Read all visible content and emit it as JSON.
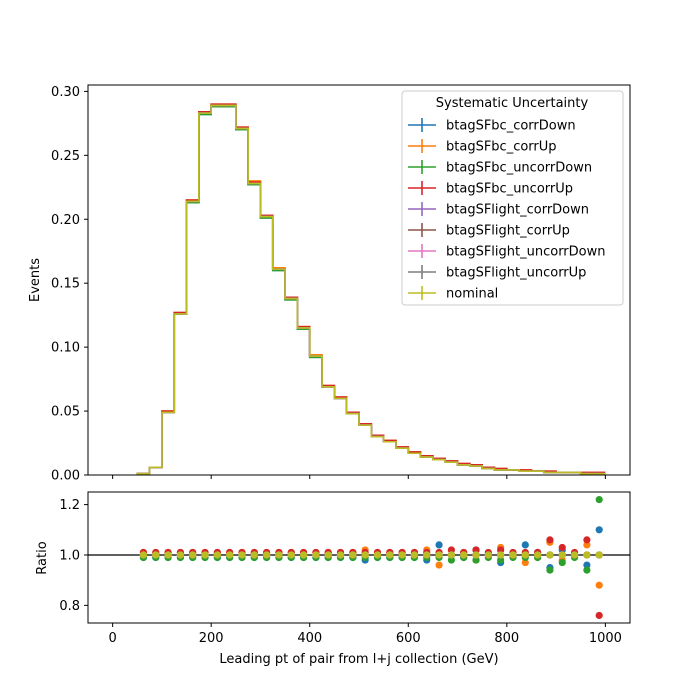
{
  "chart_data": [
    {
      "type": "line",
      "panel": "main",
      "ylabel": "Events",
      "xlim": [
        -50,
        1050
      ],
      "ylim": [
        0,
        0.305
      ],
      "xticks": [
        0,
        200,
        400,
        600,
        800,
        1000
      ],
      "yticks": [
        "0.00",
        "0.05",
        "0.10",
        "0.15",
        "0.20",
        "0.25",
        "0.30"
      ],
      "bin_edges": [
        50,
        75,
        100,
        125,
        150,
        175,
        200,
        225,
        250,
        275,
        300,
        325,
        350,
        375,
        400,
        425,
        450,
        475,
        500,
        525,
        550,
        575,
        600,
        625,
        650,
        675,
        700,
        725,
        750,
        775,
        800,
        825,
        850,
        875,
        900,
        925,
        950,
        975,
        1000
      ],
      "legend_title": "Systematic Uncertainty",
      "legend_position": "top-right",
      "series": [
        {
          "name": "btagSFbc_corrDown",
          "color": "#1f77b4",
          "values": [
            0.001,
            0.006,
            0.049,
            0.126,
            0.213,
            0.282,
            0.288,
            0.288,
            0.27,
            0.227,
            0.201,
            0.16,
            0.137,
            0.114,
            0.092,
            0.069,
            0.06,
            0.048,
            0.039,
            0.03,
            0.026,
            0.021,
            0.017,
            0.014,
            0.012,
            0.01,
            0.008,
            0.007,
            0.005,
            0.004,
            0.004,
            0.003,
            0.003,
            0.002,
            0.002,
            0.002,
            0.001,
            0.001
          ]
        },
        {
          "name": "btagSFbc_corrUp",
          "color": "#ff7f0e",
          "values": [
            0.001,
            0.006,
            0.05,
            0.127,
            0.215,
            0.284,
            0.29,
            0.29,
            0.272,
            0.23,
            0.203,
            0.162,
            0.139,
            0.116,
            0.094,
            0.07,
            0.061,
            0.049,
            0.04,
            0.031,
            0.027,
            0.022,
            0.018,
            0.015,
            0.013,
            0.011,
            0.009,
            0.008,
            0.006,
            0.005,
            0.004,
            0.004,
            0.003,
            0.003,
            0.002,
            0.002,
            0.002,
            0.002
          ]
        },
        {
          "name": "btagSFbc_uncorrDown",
          "color": "#2ca02c",
          "values": [
            0.001,
            0.006,
            0.049,
            0.126,
            0.213,
            0.282,
            0.288,
            0.288,
            0.27,
            0.227,
            0.201,
            0.16,
            0.137,
            0.114,
            0.092,
            0.069,
            0.06,
            0.048,
            0.039,
            0.03,
            0.026,
            0.021,
            0.017,
            0.014,
            0.012,
            0.01,
            0.008,
            0.007,
            0.005,
            0.004,
            0.004,
            0.003,
            0.003,
            0.002,
            0.002,
            0.002,
            0.001,
            0.001
          ]
        },
        {
          "name": "btagSFbc_uncorrUp",
          "color": "#d62728",
          "values": [
            0.001,
            0.006,
            0.05,
            0.127,
            0.215,
            0.284,
            0.29,
            0.29,
            0.272,
            0.229,
            0.203,
            0.161,
            0.139,
            0.116,
            0.093,
            0.07,
            0.061,
            0.049,
            0.04,
            0.031,
            0.027,
            0.022,
            0.018,
            0.015,
            0.013,
            0.011,
            0.009,
            0.008,
            0.006,
            0.005,
            0.004,
            0.004,
            0.003,
            0.003,
            0.002,
            0.002,
            0.002,
            0.002
          ]
        },
        {
          "name": "btagSFlight_corrDown",
          "color": "#9467bd",
          "values": [
            0.001,
            0.006,
            0.049,
            0.126,
            0.214,
            0.283,
            0.289,
            0.289,
            0.271,
            0.228,
            0.202,
            0.161,
            0.138,
            0.115,
            0.093,
            0.069,
            0.06,
            0.048,
            0.039,
            0.03,
            0.026,
            0.021,
            0.017,
            0.014,
            0.012,
            0.01,
            0.008,
            0.007,
            0.005,
            0.004,
            0.004,
            0.003,
            0.003,
            0.002,
            0.002,
            0.002,
            0.001,
            0.001
          ]
        },
        {
          "name": "btagSFlight_corrUp",
          "color": "#8c564b",
          "values": [
            0.001,
            0.006,
            0.049,
            0.126,
            0.214,
            0.283,
            0.289,
            0.289,
            0.271,
            0.228,
            0.202,
            0.161,
            0.138,
            0.115,
            0.093,
            0.069,
            0.06,
            0.048,
            0.039,
            0.03,
            0.026,
            0.021,
            0.017,
            0.014,
            0.012,
            0.01,
            0.008,
            0.007,
            0.005,
            0.004,
            0.004,
            0.003,
            0.003,
            0.002,
            0.002,
            0.002,
            0.001,
            0.001
          ]
        },
        {
          "name": "btagSFlight_uncorrDown",
          "color": "#e377c2",
          "values": [
            0.001,
            0.006,
            0.049,
            0.126,
            0.214,
            0.283,
            0.289,
            0.289,
            0.271,
            0.228,
            0.202,
            0.161,
            0.138,
            0.115,
            0.093,
            0.069,
            0.06,
            0.048,
            0.039,
            0.03,
            0.026,
            0.021,
            0.017,
            0.014,
            0.012,
            0.01,
            0.008,
            0.007,
            0.005,
            0.004,
            0.004,
            0.003,
            0.003,
            0.002,
            0.002,
            0.002,
            0.001,
            0.001
          ]
        },
        {
          "name": "btagSFlight_uncorrUp",
          "color": "#7f7f7f",
          "values": [
            0.001,
            0.006,
            0.049,
            0.126,
            0.214,
            0.283,
            0.289,
            0.289,
            0.271,
            0.228,
            0.202,
            0.161,
            0.138,
            0.115,
            0.093,
            0.069,
            0.06,
            0.048,
            0.039,
            0.03,
            0.026,
            0.021,
            0.017,
            0.014,
            0.012,
            0.01,
            0.008,
            0.007,
            0.005,
            0.004,
            0.004,
            0.003,
            0.003,
            0.002,
            0.002,
            0.002,
            0.001,
            0.001
          ]
        },
        {
          "name": "nominal",
          "color": "#bcbd22",
          "values": [
            0.001,
            0.006,
            0.049,
            0.126,
            0.214,
            0.283,
            0.289,
            0.289,
            0.271,
            0.228,
            0.202,
            0.161,
            0.138,
            0.115,
            0.093,
            0.069,
            0.06,
            0.048,
            0.039,
            0.03,
            0.026,
            0.021,
            0.017,
            0.014,
            0.012,
            0.01,
            0.008,
            0.007,
            0.005,
            0.004,
            0.004,
            0.003,
            0.003,
            0.002,
            0.002,
            0.002,
            0.001,
            0.001
          ]
        }
      ]
    },
    {
      "type": "scatter",
      "panel": "ratio",
      "xlabel": "Leading pt of pair from l+j collection (GeV)",
      "ylabel": "Ratio",
      "xlim": [
        -50,
        1050
      ],
      "ylim": [
        0.73,
        1.25
      ],
      "xticks": [
        "0",
        "200",
        "400",
        "600",
        "800",
        "1000"
      ],
      "yticks": [
        "0.8",
        "1.0",
        "1.2"
      ],
      "reference_line": 1.0,
      "x": [
        62.5,
        87.5,
        112.5,
        137.5,
        162.5,
        187.5,
        212.5,
        237.5,
        262.5,
        287.5,
        312.5,
        337.5,
        362.5,
        387.5,
        412.5,
        437.5,
        462.5,
        487.5,
        512.5,
        537.5,
        562.5,
        587.5,
        612.5,
        637.5,
        662.5,
        687.5,
        712.5,
        737.5,
        762.5,
        787.5,
        812.5,
        837.5,
        862.5,
        887.5,
        912.5,
        937.5,
        962.5,
        987.5
      ],
      "series": [
        {
          "name": "btagSFbc_corrDown",
          "color": "#1f77b4",
          "values": [
            0.99,
            0.99,
            0.99,
            0.99,
            0.99,
            0.99,
            0.99,
            0.99,
            0.99,
            0.99,
            0.99,
            0.99,
            0.99,
            0.99,
            0.99,
            0.99,
            0.99,
            0.99,
            0.98,
            0.99,
            0.99,
            0.99,
            0.99,
            0.98,
            1.04,
            1.0,
            0.99,
            1.02,
            1.0,
            0.97,
            1.0,
            1.04,
            1.01,
            0.95,
            1.02,
            1.0,
            0.96,
            1.1
          ]
        },
        {
          "name": "btagSFbc_corrUp",
          "color": "#ff7f0e",
          "values": [
            1.01,
            1.01,
            1.01,
            1.01,
            1.01,
            1.01,
            1.01,
            1.01,
            1.01,
            1.01,
            1.01,
            1.01,
            1.01,
            1.01,
            1.01,
            1.01,
            1.01,
            1.01,
            1.02,
            1.01,
            1.01,
            1.01,
            1.01,
            1.02,
            0.96,
            1.0,
            1.01,
            0.98,
            1.0,
            1.03,
            1.0,
            0.97,
            0.99,
            1.05,
            0.98,
            1.0,
            1.04,
            0.88
          ]
        },
        {
          "name": "btagSFbc_uncorrDown",
          "color": "#2ca02c",
          "values": [
            0.99,
            0.99,
            0.99,
            0.99,
            0.99,
            0.99,
            0.99,
            0.99,
            0.99,
            0.99,
            0.99,
            0.99,
            0.99,
            0.99,
            0.99,
            0.99,
            0.99,
            0.99,
            0.99,
            0.99,
            0.99,
            0.99,
            0.99,
            0.99,
            0.99,
            0.98,
            0.99,
            0.98,
            0.99,
            0.98,
            0.99,
            0.99,
            0.99,
            0.94,
            0.97,
            0.99,
            0.94,
            1.22
          ]
        },
        {
          "name": "btagSFbc_uncorrUp",
          "color": "#d62728",
          "values": [
            1.01,
            1.01,
            1.01,
            1.01,
            1.01,
            1.01,
            1.01,
            1.01,
            1.01,
            1.01,
            1.01,
            1.01,
            1.01,
            1.01,
            1.01,
            1.01,
            1.01,
            1.01,
            1.01,
            1.01,
            1.01,
            1.01,
            1.01,
            1.01,
            1.01,
            1.02,
            1.01,
            1.02,
            1.01,
            1.02,
            1.01,
            1.01,
            1.01,
            1.06,
            1.03,
            1.01,
            1.06,
            0.76
          ]
        },
        {
          "name": "btagSFlight_corrDown",
          "color": "#9467bd",
          "values": [
            1.0,
            1.0,
            1.0,
            1.0,
            1.0,
            1.0,
            1.0,
            1.0,
            1.0,
            1.0,
            1.0,
            1.0,
            1.0,
            1.0,
            1.0,
            1.0,
            1.0,
            1.0,
            1.0,
            1.0,
            1.0,
            1.0,
            1.0,
            1.0,
            1.0,
            1.0,
            1.0,
            1.0,
            1.0,
            1.0,
            1.0,
            1.0,
            1.0,
            1.0,
            1.0,
            1.0,
            1.0,
            1.0
          ]
        },
        {
          "name": "btagSFlight_corrUp",
          "color": "#8c564b",
          "values": [
            1.0,
            1.0,
            1.0,
            1.0,
            1.0,
            1.0,
            1.0,
            1.0,
            1.0,
            1.0,
            1.0,
            1.0,
            1.0,
            1.0,
            1.0,
            1.0,
            1.0,
            1.0,
            1.0,
            1.0,
            1.0,
            1.0,
            1.0,
            1.0,
            1.0,
            1.0,
            1.0,
            1.0,
            1.0,
            1.0,
            1.0,
            1.0,
            1.0,
            1.0,
            1.0,
            1.0,
            1.0,
            1.0
          ]
        },
        {
          "name": "btagSFlight_uncorrDown",
          "color": "#e377c2",
          "values": [
            1.0,
            1.0,
            1.0,
            1.0,
            1.0,
            1.0,
            1.0,
            1.0,
            1.0,
            1.0,
            1.0,
            1.0,
            1.0,
            1.0,
            1.0,
            1.0,
            1.0,
            1.0,
            1.0,
            1.0,
            1.0,
            1.0,
            1.0,
            1.0,
            1.0,
            1.0,
            1.0,
            1.0,
            1.0,
            1.0,
            1.0,
            1.0,
            1.0,
            1.0,
            1.0,
            1.0,
            1.0,
            1.0
          ]
        },
        {
          "name": "btagSFlight_uncorrUp",
          "color": "#7f7f7f",
          "values": [
            1.0,
            1.0,
            1.0,
            1.0,
            1.0,
            1.0,
            1.0,
            1.0,
            1.0,
            1.0,
            1.0,
            1.0,
            1.0,
            1.0,
            1.0,
            1.0,
            1.0,
            1.0,
            1.0,
            1.0,
            1.0,
            1.0,
            1.0,
            1.0,
            1.0,
            1.0,
            1.0,
            1.0,
            1.0,
            1.0,
            1.0,
            1.0,
            1.0,
            1.0,
            1.0,
            1.0,
            1.0,
            1.0
          ]
        },
        {
          "name": "nominal",
          "color": "#bcbd22",
          "values": [
            1.0,
            1.0,
            1.0,
            1.0,
            1.0,
            1.0,
            1.0,
            1.0,
            1.0,
            1.0,
            1.0,
            1.0,
            1.0,
            1.0,
            1.0,
            1.0,
            1.0,
            1.0,
            1.0,
            1.0,
            1.0,
            1.0,
            1.0,
            1.0,
            1.0,
            1.0,
            1.0,
            1.0,
            1.0,
            1.0,
            1.0,
            1.0,
            1.0,
            1.0,
            1.0,
            1.0,
            1.0,
            1.0
          ]
        }
      ]
    }
  ]
}
